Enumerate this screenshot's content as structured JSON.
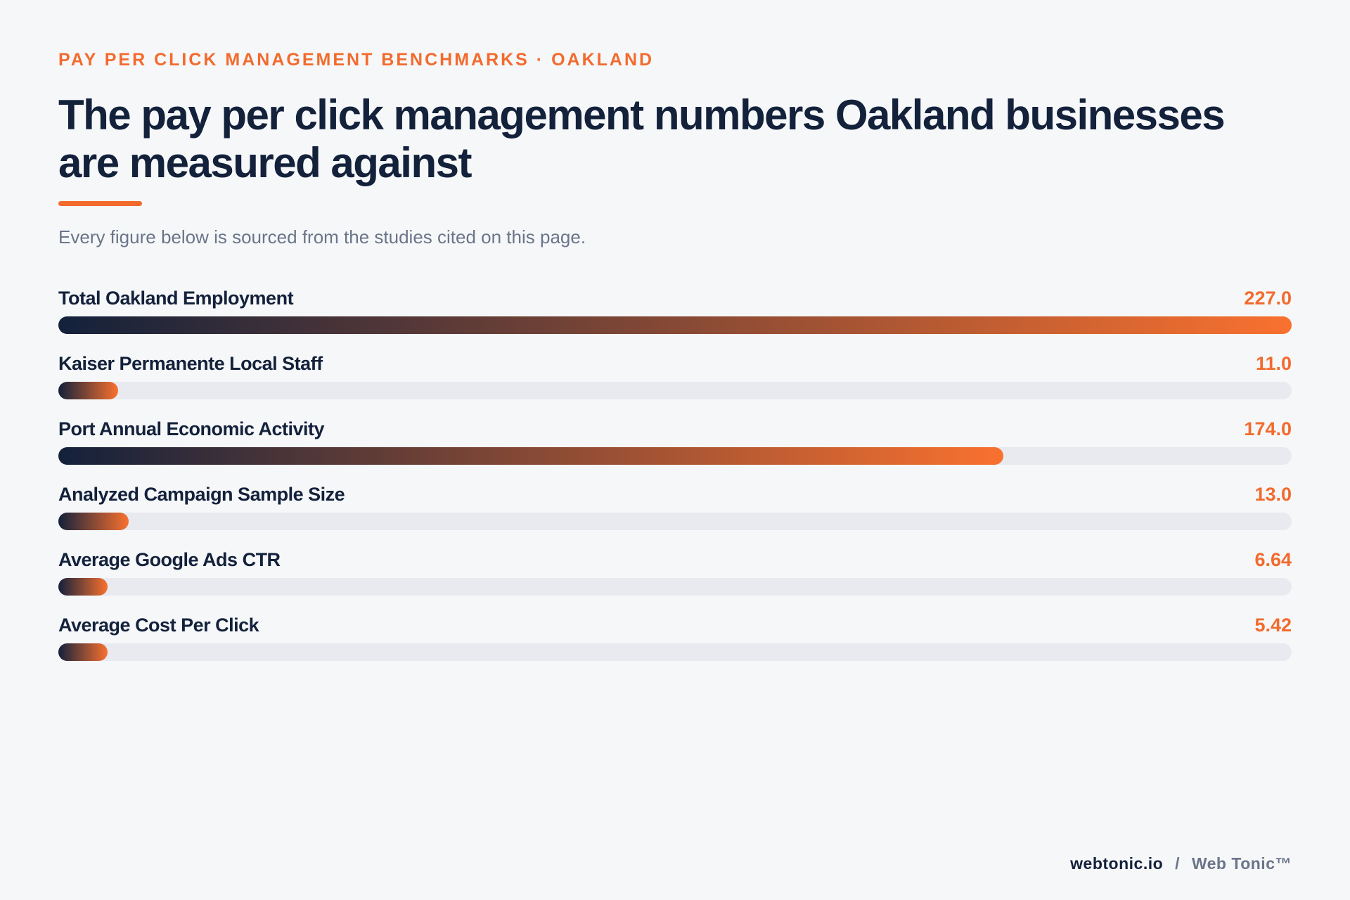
{
  "header": {
    "eyebrow": "PAY PER CLICK MANAGEMENT BENCHMARKS · OAKLAND",
    "title": "The pay per click management numbers Oakland businesses are measured against",
    "subtitle": "Every figure below is sourced from the studies cited on this page."
  },
  "colors": {
    "accent": "#f26b2d",
    "navy": "#13213b",
    "track": "#e8eaf0",
    "background": "#f6f7f9"
  },
  "chart_data": {
    "type": "bar",
    "orientation": "horizontal",
    "categories": [
      "Total Oakland Employment",
      "Kaiser Permanente Local Staff",
      "Port Annual Economic Activity",
      "Analyzed Campaign Sample Size",
      "Average Google Ads CTR",
      "Average Cost Per Click"
    ],
    "values": [
      227.0,
      11.0,
      174.0,
      13.0,
      6.64,
      5.42
    ],
    "value_labels": [
      "227.0",
      "11.0",
      "174.0",
      "13.0",
      "6.64",
      "5.42"
    ],
    "xlim": [
      0,
      227.0
    ],
    "grid": false,
    "legend": "none"
  },
  "footer": {
    "site": "webtonic.io",
    "separator": "/",
    "brand": "Web Tonic™"
  }
}
